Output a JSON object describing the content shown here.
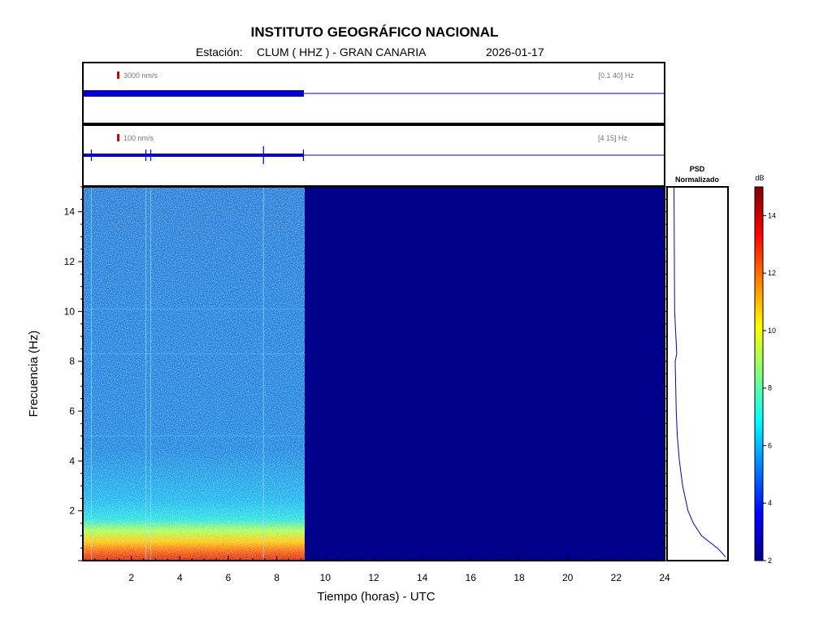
{
  "header": {
    "title": "INSTITUTO GEOGRÁFICO NACIONAL",
    "station_prefix": "Estación:",
    "station": "CLUM ( HHZ ) - GRAN CANARIA",
    "date": "2026-01-17"
  },
  "traces": [
    {
      "scale_label": "3000 nm/s",
      "band_label": "[0.1 40] Hz"
    },
    {
      "scale_label": "100 nm/s",
      "band_label": "[4 15] Hz"
    }
  ],
  "psd": {
    "title_line1": "PSD",
    "title_line2": "Normalizado"
  },
  "colorbar": {
    "unit": "dB",
    "ticks": [
      2,
      4,
      6,
      8,
      10,
      12,
      14
    ],
    "range": [
      2,
      15
    ]
  },
  "colors": {
    "axis": "#000000",
    "trace": "#0000d0",
    "background_fill": "#00008b",
    "scale_marker": "#dd0000"
  },
  "chart_data": {
    "type": "heatmap",
    "xlabel": "Tiempo (horas) - UTC",
    "ylabel": "Frecuencia  (Hz)",
    "x_ticks": [
      2,
      4,
      6,
      8,
      10,
      12,
      14,
      16,
      18,
      20,
      22,
      24
    ],
    "y_ticks": [
      2,
      4,
      6,
      8,
      10,
      12,
      14
    ],
    "xlim": [
      0,
      24
    ],
    "ylim": [
      0,
      15
    ],
    "data_end_hour": 9.1,
    "events_hours": [
      0.35,
      2.6,
      2.8,
      7.45,
      9.1
    ],
    "psd_profile": [
      {
        "f": 0.15,
        "v": 1.0
      },
      {
        "f": 0.5,
        "v": 0.85
      },
      {
        "f": 1.0,
        "v": 0.55
      },
      {
        "f": 1.5,
        "v": 0.4
      },
      {
        "f": 2.0,
        "v": 0.3
      },
      {
        "f": 3.0,
        "v": 0.2
      },
      {
        "f": 4.0,
        "v": 0.14
      },
      {
        "f": 5.0,
        "v": 0.1
      },
      {
        "f": 6.0,
        "v": 0.08
      },
      {
        "f": 8.0,
        "v": 0.06
      },
      {
        "f": 8.3,
        "v": 0.09
      },
      {
        "f": 10.0,
        "v": 0.05
      },
      {
        "f": 12.0,
        "v": 0.045
      },
      {
        "f": 15.0,
        "v": 0.04
      }
    ]
  }
}
